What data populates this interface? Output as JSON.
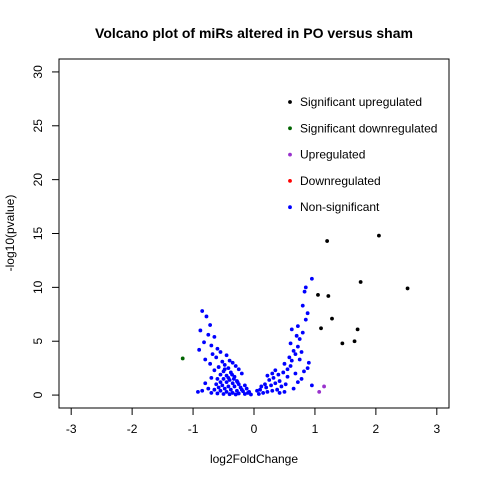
{
  "chart_data": {
    "type": "scatter",
    "title": "Volcano plot of miRs altered in PO versus sham",
    "xlabel": "log2FoldChange",
    "ylabel": "-log10(pvalue)",
    "xlim": [
      -3.2,
      3.2
    ],
    "ylim": [
      -1.2,
      31.2
    ],
    "xticks": [
      -3,
      -2,
      -1,
      0,
      1,
      2,
      3
    ],
    "yticks": [
      0,
      5,
      10,
      15,
      20,
      25,
      30
    ],
    "grid": false,
    "legend_position": "top-right",
    "series": [
      {
        "name": "Significant upregulated",
        "color": "#000000",
        "points": [
          [
            2.05,
            14.8
          ],
          [
            1.2,
            14.3
          ],
          [
            2.52,
            9.9
          ],
          [
            1.75,
            10.5
          ],
          [
            1.05,
            9.3
          ],
          [
            1.22,
            9.2
          ],
          [
            1.28,
            7.1
          ],
          [
            1.1,
            6.2
          ],
          [
            1.7,
            6.1
          ],
          [
            1.65,
            5.0
          ],
          [
            1.45,
            4.8
          ]
        ]
      },
      {
        "name": "Significant downregulated",
        "color": "#006400",
        "points": [
          [
            -1.17,
            3.4
          ]
        ]
      },
      {
        "name": "Upregulated",
        "color": "#9932CC",
        "points": [
          [
            1.07,
            0.3
          ],
          [
            1.15,
            0.8
          ]
        ]
      },
      {
        "name": "Downregulated",
        "color": "#FF0000",
        "points": []
      },
      {
        "name": "Non-significant",
        "color": "#0000FF",
        "points": [
          [
            -0.85,
            7.8
          ],
          [
            -0.78,
            7.3
          ],
          [
            -0.72,
            6.5
          ],
          [
            -0.88,
            6.0
          ],
          [
            -0.75,
            5.6
          ],
          [
            -0.65,
            5.4
          ],
          [
            -0.82,
            4.9
          ],
          [
            -0.7,
            4.6
          ],
          [
            -0.6,
            4.3
          ],
          [
            -0.9,
            4.2
          ],
          [
            -0.55,
            4.0
          ],
          [
            -0.68,
            3.8
          ],
          [
            -0.45,
            3.7
          ],
          [
            -0.62,
            3.5
          ],
          [
            -0.8,
            3.3
          ],
          [
            -0.4,
            3.2
          ],
          [
            -0.52,
            3.1
          ],
          [
            -0.35,
            3.0
          ],
          [
            -0.72,
            2.9
          ],
          [
            -0.48,
            2.8
          ],
          [
            -0.3,
            2.7
          ],
          [
            -0.58,
            2.6
          ],
          [
            -0.42,
            2.5
          ],
          [
            -0.25,
            2.4
          ],
          [
            -0.65,
            2.3
          ],
          [
            -0.5,
            2.2
          ],
          [
            -0.38,
            2.1
          ],
          [
            -0.2,
            2.0
          ],
          [
            -0.55,
            1.9
          ],
          [
            -0.45,
            1.8
          ],
          [
            -0.32,
            1.7
          ],
          [
            -0.7,
            1.6
          ],
          [
            -0.6,
            1.5
          ],
          [
            -0.5,
            1.5
          ],
          [
            -0.4,
            1.4
          ],
          [
            -0.28,
            1.3
          ],
          [
            -0.55,
            1.2
          ],
          [
            -0.45,
            1.2
          ],
          [
            -0.35,
            1.1
          ],
          [
            -0.25,
            1.0
          ],
          [
            -0.15,
            0.9
          ],
          [
            -0.62,
            1.0
          ],
          [
            -0.52,
            0.9
          ],
          [
            -0.42,
            0.8
          ],
          [
            -0.32,
            0.8
          ],
          [
            -0.22,
            0.7
          ],
          [
            -0.12,
            0.6
          ],
          [
            -0.58,
            0.7
          ],
          [
            -0.48,
            0.6
          ],
          [
            -0.38,
            0.5
          ],
          [
            -0.28,
            0.4
          ],
          [
            -0.18,
            0.35
          ],
          [
            -0.08,
            0.3
          ],
          [
            -0.65,
            0.5
          ],
          [
            -0.55,
            0.4
          ],
          [
            -0.45,
            0.3
          ],
          [
            -0.35,
            0.2
          ],
          [
            -0.25,
            0.15
          ],
          [
            -0.15,
            0.1
          ],
          [
            -0.05,
            0.05
          ],
          [
            -0.75,
            0.6
          ],
          [
            -0.85,
            0.4
          ],
          [
            -0.92,
            0.3
          ],
          [
            -0.7,
            0.2
          ],
          [
            -0.6,
            0.15
          ],
          [
            -0.5,
            0.1
          ],
          [
            -0.4,
            0.08
          ],
          [
            -0.3,
            0.05
          ],
          [
            -0.8,
            1.1
          ],
          [
            -0.42,
            1.6
          ],
          [
            -0.36,
            1.9
          ],
          [
            -0.48,
            2.4
          ],
          [
            -0.33,
            1.5
          ],
          [
            -0.27,
            1.2
          ],
          [
            -0.2,
            0.5
          ],
          [
            -0.1,
            0.2
          ],
          [
            0.08,
            0.1
          ],
          [
            0.15,
            0.2
          ],
          [
            0.22,
            0.3
          ],
          [
            0.3,
            0.4
          ],
          [
            0.38,
            0.5
          ],
          [
            0.1,
            0.5
          ],
          [
            0.2,
            0.7
          ],
          [
            0.28,
            0.9
          ],
          [
            0.35,
            1.1
          ],
          [
            0.42,
            1.3
          ],
          [
            0.18,
            1.0
          ],
          [
            0.25,
            1.4
          ],
          [
            0.32,
            1.6
          ],
          [
            0.4,
            1.9
          ],
          [
            0.48,
            2.1
          ],
          [
            0.22,
            1.8
          ],
          [
            0.3,
            2.0
          ],
          [
            0.45,
            0.8
          ],
          [
            0.52,
            1.0
          ],
          [
            0.55,
            2.4
          ],
          [
            0.6,
            2.7
          ],
          [
            0.5,
            2.9
          ],
          [
            0.62,
            3.2
          ],
          [
            0.58,
            3.5
          ],
          [
            0.68,
            3.8
          ],
          [
            0.65,
            4.1
          ],
          [
            0.72,
            4.5
          ],
          [
            0.6,
            4.8
          ],
          [
            0.75,
            5.2
          ],
          [
            0.7,
            5.5
          ],
          [
            0.8,
            5.8
          ],
          [
            0.62,
            6.1
          ],
          [
            0.72,
            6.4
          ],
          [
            0.85,
            7.0
          ],
          [
            0.88,
            7.6
          ],
          [
            0.8,
            8.3
          ],
          [
            0.83,
            9.6
          ],
          [
            0.85,
            10.0
          ],
          [
            0.95,
            10.8
          ],
          [
            0.65,
            0.6
          ],
          [
            0.72,
            1.2
          ],
          [
            0.78,
            1.5
          ],
          [
            0.82,
            2.2
          ],
          [
            0.88,
            2.5
          ],
          [
            0.9,
            3.0
          ],
          [
            0.95,
            0.9
          ],
          [
            0.5,
            0.3
          ],
          [
            0.42,
            0.2
          ],
          [
            0.05,
            0.4
          ],
          [
            0.12,
            0.8
          ],
          [
            0.35,
            2.3
          ],
          [
            0.55,
            1.7
          ],
          [
            0.68,
            2.0
          ],
          [
            0.75,
            3.3
          ],
          [
            0.78,
            4.0
          ]
        ]
      }
    ]
  }
}
